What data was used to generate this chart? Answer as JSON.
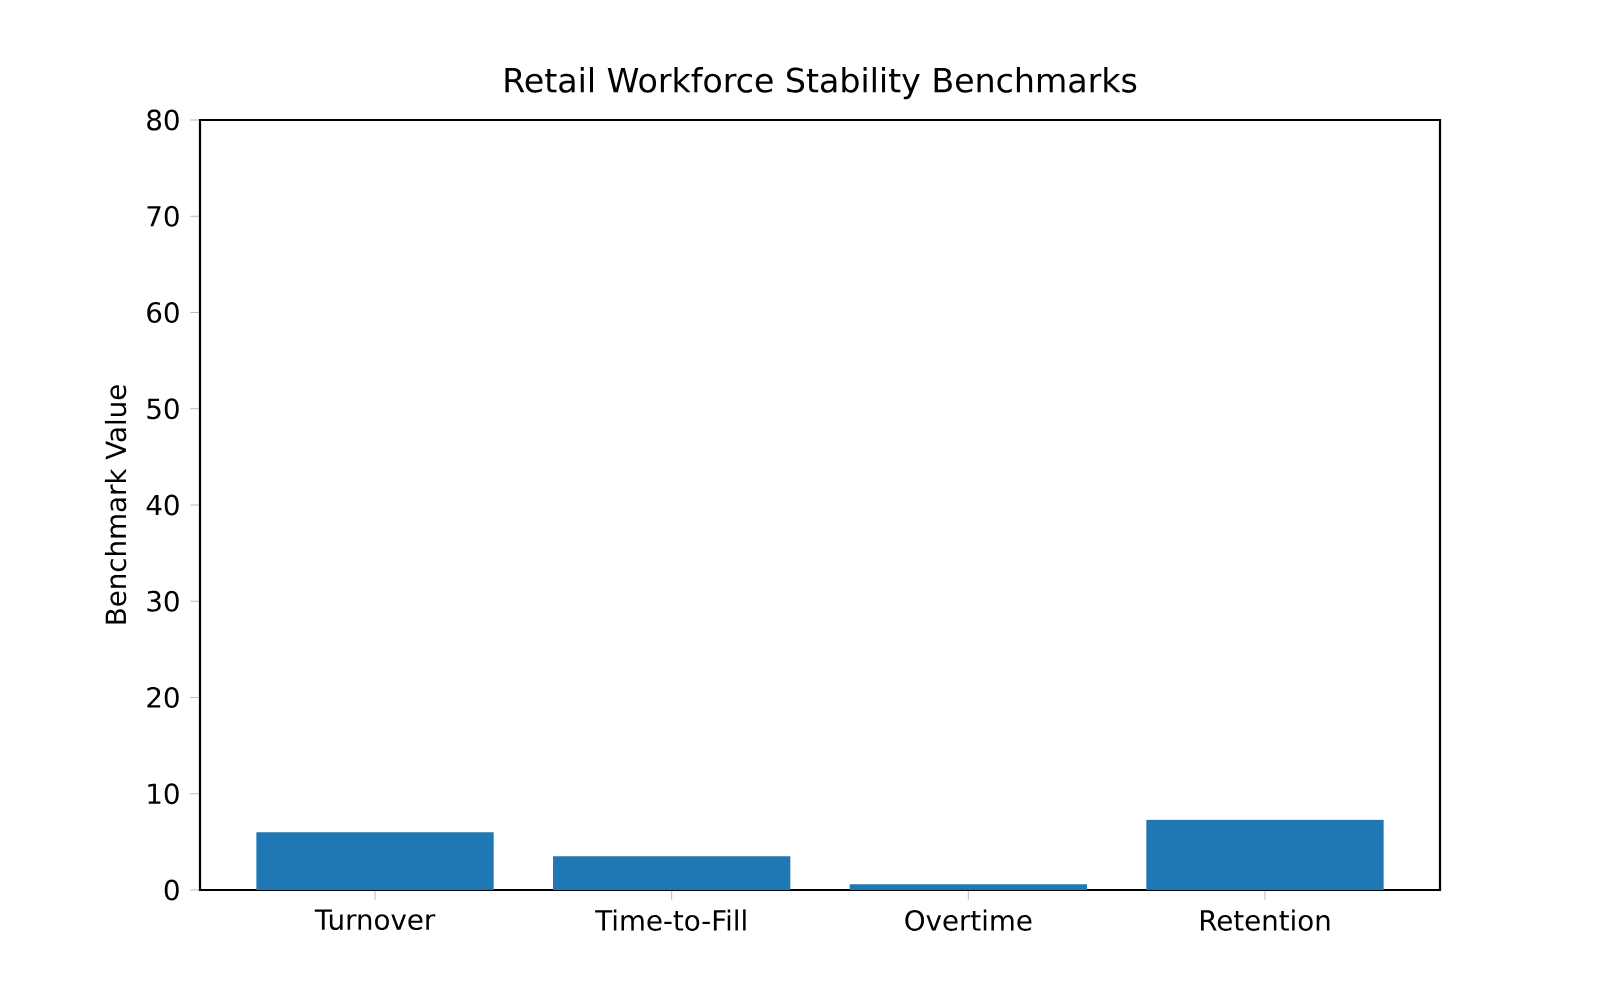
{
  "chart_data": {
    "type": "bar",
    "title": "Retail Workforce Stability Benchmarks",
    "ylabel": "Benchmark Value",
    "categories": [
      "Turnover",
      "Time-to-Fill",
      "Overtime",
      "Retention"
    ],
    "values": [
      6.0,
      3.5,
      0.6,
      7.3
    ],
    "color": "#1f77b4",
    "ylim": [
      0,
      80
    ],
    "yticks": [
      0,
      10,
      20,
      30,
      40,
      50,
      60,
      70,
      80
    ],
    "grid": false
  }
}
